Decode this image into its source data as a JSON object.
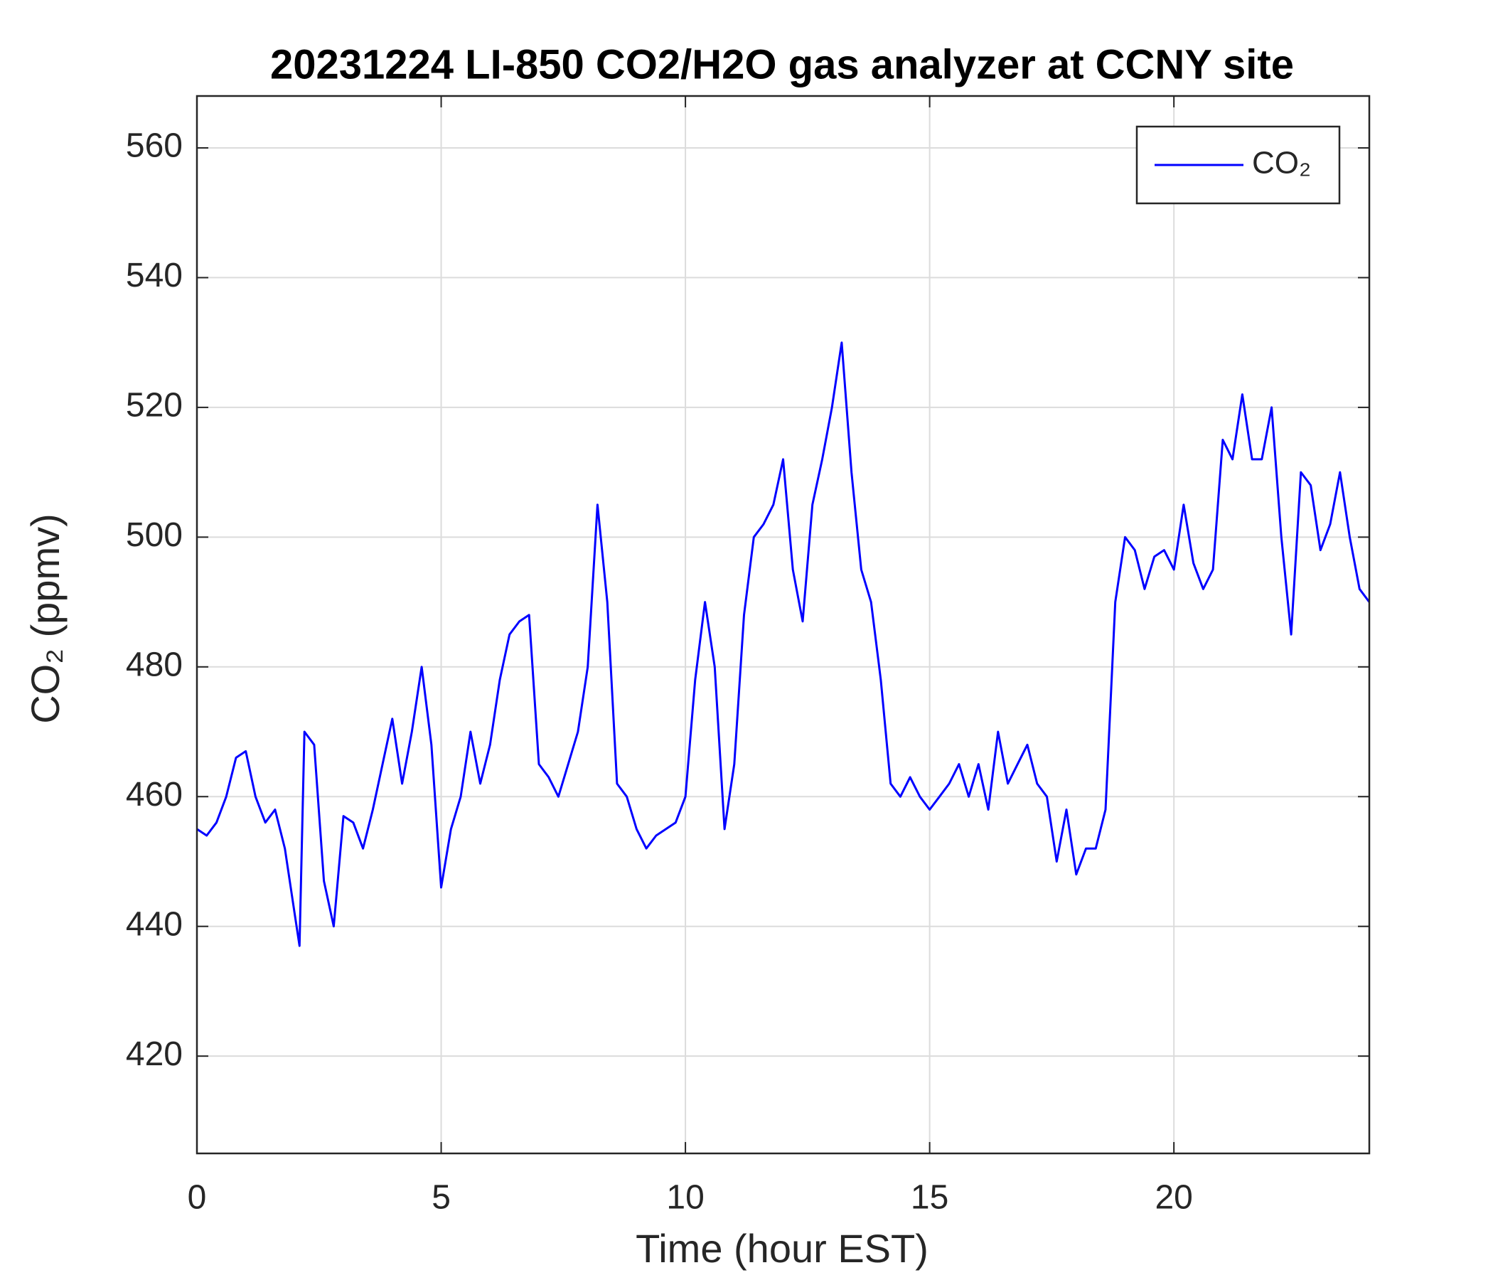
{
  "chart_data": {
    "type": "line",
    "title": "20231224 LI-850 CO2/H2O gas analyzer at CCNY site",
    "x_label": "Time (hour EST)",
    "y_label": "CO₂ (ppmv)",
    "x": [
      0,
      0.2,
      0.4,
      0.6,
      0.8,
      1.0,
      1.2,
      1.4,
      1.6,
      1.8,
      2.0,
      2.1,
      2.2,
      2.4,
      2.6,
      2.8,
      3.0,
      3.2,
      3.4,
      3.6,
      3.8,
      4.0,
      4.2,
      4.4,
      4.6,
      4.8,
      5.0,
      5.2,
      5.4,
      5.6,
      5.8,
      6.0,
      6.2,
      6.4,
      6.6,
      6.8,
      7.0,
      7.2,
      7.4,
      7.6,
      7.8,
      8.0,
      8.2,
      8.4,
      8.6,
      8.8,
      9.0,
      9.2,
      9.4,
      9.6,
      9.8,
      10.0,
      10.2,
      10.4,
      10.6,
      10.8,
      11.0,
      11.2,
      11.4,
      11.6,
      11.8,
      12.0,
      12.2,
      12.4,
      12.6,
      12.8,
      13.0,
      13.2,
      13.4,
      13.6,
      13.8,
      14.0,
      14.2,
      14.4,
      14.6,
      14.8,
      15.0,
      15.2,
      15.4,
      15.6,
      15.8,
      16.0,
      16.2,
      16.4,
      16.6,
      16.8,
      17.0,
      17.2,
      17.4,
      17.6,
      17.8,
      18.0,
      18.2,
      18.4,
      18.6,
      18.8,
      19.0,
      19.2,
      19.4,
      19.6,
      19.8,
      20.0,
      20.2,
      20.4,
      20.6,
      20.8,
      21.0,
      21.2,
      21.4,
      21.6,
      21.8,
      22.0,
      22.2,
      22.4,
      22.6,
      22.8,
      23.0,
      23.2,
      23.4,
      23.6,
      23.8,
      24.0
    ],
    "series": [
      {
        "name": "CO₂",
        "color": "#0000ff",
        "values": [
          455,
          454,
          456,
          460,
          466,
          467,
          460,
          456,
          458,
          452,
          442,
          437,
          470,
          468,
          447,
          440,
          457,
          456,
          452,
          458,
          465,
          472,
          462,
          470,
          480,
          468,
          446,
          455,
          460,
          470,
          462,
          468,
          478,
          485,
          487,
          488,
          465,
          463,
          460,
          465,
          470,
          480,
          505,
          490,
          462,
          460,
          455,
          452,
          454,
          455,
          456,
          460,
          478,
          490,
          480,
          455,
          465,
          488,
          500,
          502,
          505,
          512,
          495,
          487,
          505,
          512,
          520,
          530,
          510,
          495,
          490,
          478,
          462,
          460,
          463,
          460,
          458,
          460,
          462,
          465,
          460,
          465,
          458,
          470,
          462,
          465,
          468,
          462,
          460,
          450,
          458,
          448,
          452,
          452,
          458,
          490,
          500,
          498,
          492,
          497,
          498,
          495,
          505,
          496,
          492,
          495,
          515,
          512,
          522,
          512,
          512,
          520,
          500,
          485,
          510,
          508,
          498,
          502,
          510,
          500,
          492,
          490
        ]
      }
    ],
    "xlim": [
      0,
      24
    ],
    "xticks": [
      0,
      5,
      10,
      15,
      20
    ],
    "ylim": [
      405,
      568
    ],
    "yticks": [
      420,
      440,
      460,
      480,
      500,
      520,
      540,
      560
    ],
    "grid": true,
    "legend": "top-right"
  }
}
